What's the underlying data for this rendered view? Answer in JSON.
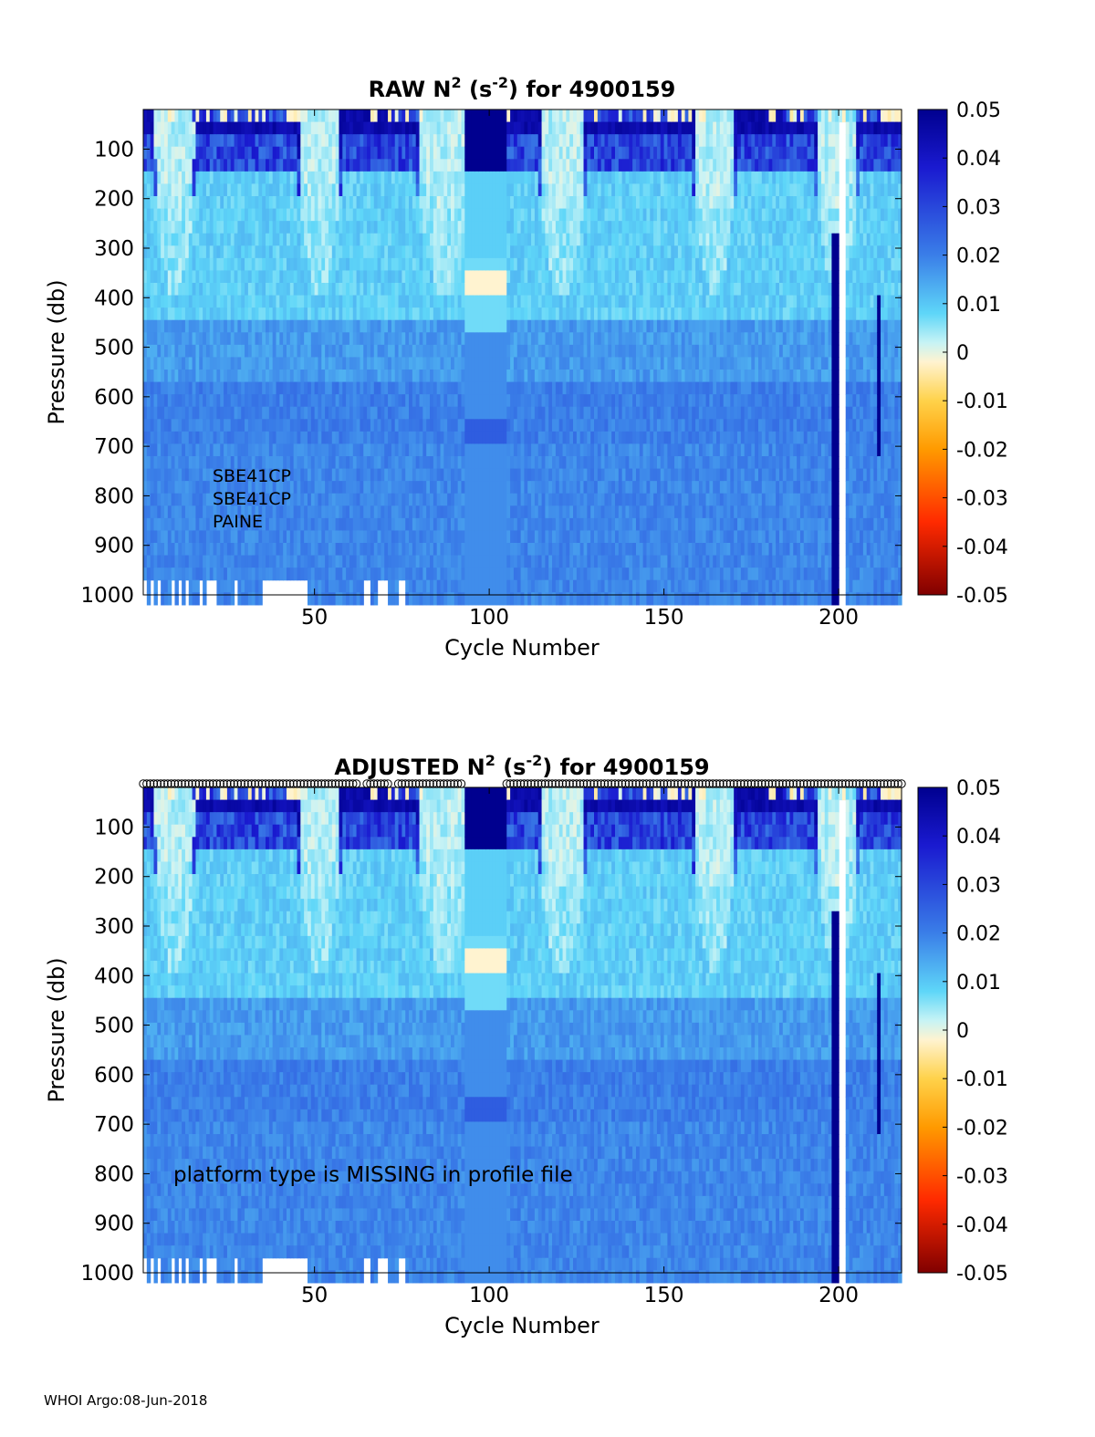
{
  "footer": "WHOI Argo:08-Jun-2018",
  "chart_data": [
    {
      "type": "heatmap",
      "title_parts": {
        "prefix": "RAW N",
        "sup1": "2",
        "mid": " (s",
        "sup2": "-2",
        "suffix": ") for 4900159"
      },
      "xlabel": "Cycle Number",
      "ylabel": "Pressure (db)",
      "xlim": [
        1,
        218
      ],
      "ylim": [
        20,
        1000
      ],
      "y_reversed": true,
      "xticks": [
        50,
        100,
        150,
        200
      ],
      "yticks": [
        100,
        200,
        300,
        400,
        500,
        600,
        700,
        800,
        900,
        1000
      ],
      "colorbar": {
        "limits": [
          -0.05,
          0.05
        ],
        "ticks": [
          "0.05",
          "0.04",
          "0.03",
          "0.02",
          "0.01",
          "0",
          "-0.01",
          "-0.02",
          "-0.03",
          "-0.04",
          "-0.05"
        ]
      },
      "annotations": [
        "SBE41CP",
        "SBE41CP",
        "PAINE"
      ],
      "show_markers": false,
      "colormap": "blue-cyan-white-yellow-red"
    },
    {
      "type": "heatmap",
      "title_parts": {
        "prefix": "ADJUSTED N",
        "sup1": "2",
        "mid": " (s",
        "sup2": "-2",
        "suffix": ") for 4900159"
      },
      "xlabel": "Cycle Number",
      "ylabel": "Pressure (db)",
      "xlim": [
        1,
        218
      ],
      "ylim": [
        20,
        1000
      ],
      "y_reversed": true,
      "xticks": [
        50,
        100,
        150,
        200
      ],
      "yticks": [
        100,
        200,
        300,
        400,
        500,
        600,
        700,
        800,
        900,
        1000
      ],
      "colorbar": {
        "limits": [
          -0.05,
          0.05
        ],
        "ticks": [
          "0.05",
          "0.04",
          "0.03",
          "0.02",
          "0.01",
          "0",
          "-0.01",
          "-0.02",
          "-0.03",
          "-0.04",
          "-0.05"
        ]
      },
      "annotations": [
        "platform type is MISSING in profile file"
      ],
      "show_markers": true,
      "marker_gaps": [
        [
          63,
          64
        ],
        [
          72,
          73
        ],
        [
          93,
          104
        ]
      ],
      "colormap": "blue-cyan-white-yellow-red"
    }
  ]
}
